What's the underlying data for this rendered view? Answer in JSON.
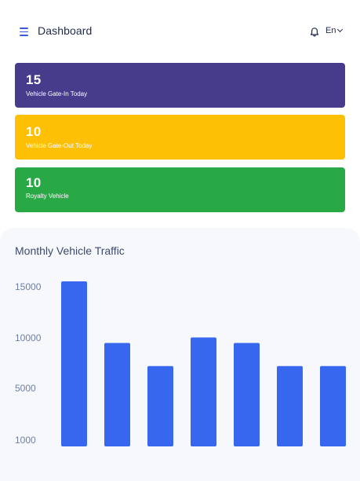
{
  "header": {
    "title": "Dashboard",
    "language": "En",
    "menu_icon": "hamburger-menu-icon",
    "notification_icon": "bell-icon"
  },
  "cards": [
    {
      "value": "15",
      "label": "Vehicle Gate-In Today",
      "color": "#473b8c"
    },
    {
      "value": "10",
      "label": "Vehicle Gate-Out Today",
      "color": "#fdc004"
    },
    {
      "value": "10",
      "label": "Royalty Vehicle",
      "color": "#29a946"
    }
  ],
  "chart": {
    "title": "Monthly Vehicle Traffic"
  },
  "chart_data": {
    "type": "bar",
    "title": "",
    "xlabel": "",
    "ylabel": "",
    "y_ticks": [
      "15000",
      "10000",
      "5000",
      "1000"
    ],
    "ylim": [
      1000,
      15000
    ],
    "grid": false,
    "bar_color": "#3667ee",
    "values": [
      15000,
      9400,
      7300,
      9900,
      9400,
      7300,
      7300
    ]
  }
}
